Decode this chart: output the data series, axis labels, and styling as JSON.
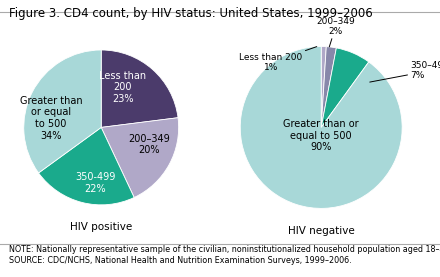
{
  "title": "Figure 3. CD4 count, by HIV status: United States, 1999–2006",
  "note": "NOTE: Nationally representative sample of the civilian, noninstitutionalized household population aged 18–49 years.\nSOURCE: CDC/NCHS, National Health and Nutrition Examination Surveys, 1999–2006.",
  "pie1_label": "HIV positive",
  "pie1_values": [
    23,
    20,
    22,
    35
  ],
  "pie1_colors": [
    "#4b3b6b",
    "#b0a8c8",
    "#1aaa8c",
    "#a8d8d8"
  ],
  "pie1_startangle": 90,
  "pie2_label": "HIV negative",
  "pie2_values": [
    1,
    2,
    7,
    90
  ],
  "pie2_colors": [
    "#b0a8c8",
    "#8888aa",
    "#1aaa8c",
    "#a8d8d8"
  ],
  "pie2_startangle": 90,
  "background_color": "#ffffff",
  "title_fontsize": 8.5,
  "label_fontsize": 7.0,
  "note_fontsize": 5.8
}
